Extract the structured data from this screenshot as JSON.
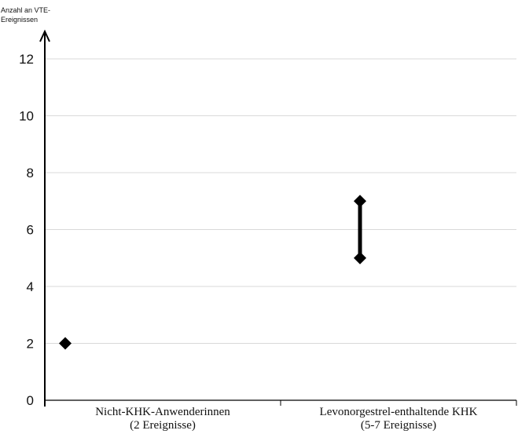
{
  "chart_data": {
    "type": "scatter",
    "title": "",
    "ylabel_lines": [
      "Anzahl an VTE-",
      "Ereignissen"
    ],
    "xlabel": "",
    "ylim": [
      0,
      12
    ],
    "yticks": [
      {
        "value": 0,
        "label": "0"
      },
      {
        "value": 2,
        "label": "2"
      },
      {
        "value": 4,
        "label": "4"
      },
      {
        "value": 6,
        "label": "6"
      },
      {
        "value": 8,
        "label": "8"
      },
      {
        "value": 10,
        "label": "10"
      },
      {
        "value": 12,
        "label": "12"
      }
    ],
    "grid": true,
    "categories": [
      {
        "label_lines": [
          "Nicht-KHK-Anwenderinnen",
          "(2 Ereignisse)"
        ],
        "low": 2,
        "high": 2
      },
      {
        "label_lines": [
          "Levonorgestrel-enthaltende KHK",
          "(5-7 Ereignisse)"
        ],
        "low": 5,
        "high": 7
      }
    ],
    "colors": {
      "marker": "#000000",
      "axis": "#000000",
      "grid": "#d9d9d9"
    }
  }
}
